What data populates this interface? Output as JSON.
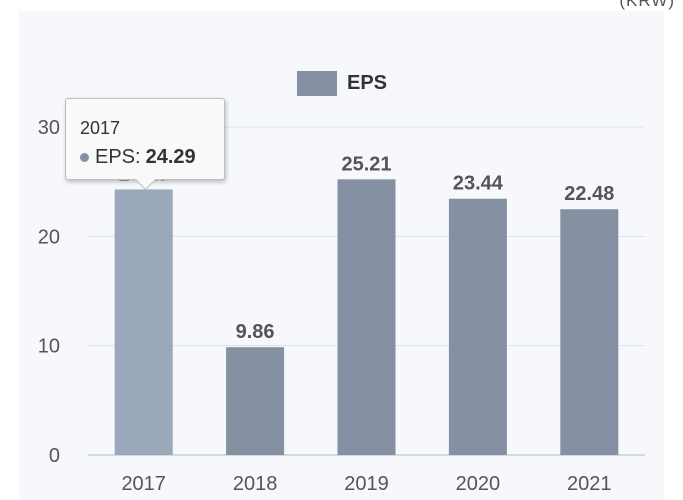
{
  "top_fragment": "(KRW)",
  "legend": {
    "label": "EPS",
    "color": "#8591a2"
  },
  "tooltip": {
    "category": "2017",
    "series": "EPS:",
    "value": "24.29"
  },
  "colors": {
    "bar": "#8591a2",
    "bar_highlight": "#9aa8bb",
    "grid": "#dde2e8",
    "axis_text": "#555555",
    "label_text": "#555555"
  },
  "chart_data": {
    "type": "bar",
    "title": "",
    "xlabel": "",
    "ylabel": "",
    "categories": [
      "2017",
      "2018",
      "2019",
      "2020",
      "2021"
    ],
    "series": [
      {
        "name": "EPS",
        "values": [
          24.29,
          9.86,
          25.21,
          23.44,
          22.48
        ]
      }
    ],
    "data_labels": [
      "24.29",
      "9.86",
      "25.21",
      "23.44",
      "22.48"
    ],
    "highlighted_category": "2017",
    "ylim": [
      0,
      30
    ],
    "yticks": [
      0,
      10,
      20,
      30
    ],
    "grid": true,
    "legend_position": "top-center"
  }
}
